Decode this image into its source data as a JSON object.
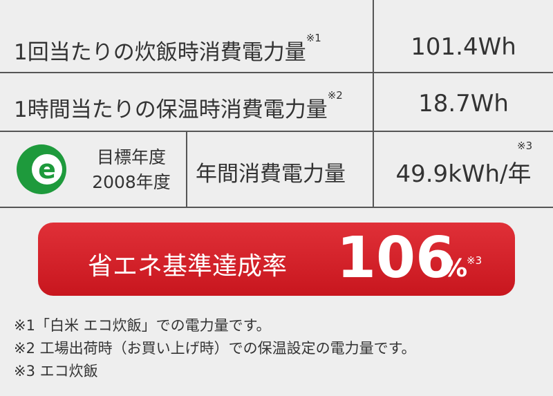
{
  "table": {
    "rows": [
      {
        "label": "1回当たりの炊飯時消費電力量",
        "note": "※1",
        "value": "101.4Wh"
      },
      {
        "label": "1時間当たりの保温時消費電力量",
        "note": "※2",
        "value": "18.7Wh"
      },
      {
        "mark": "e",
        "target": [
          "目標年度",
          "2008年度"
        ],
        "label": "年間消費電力量",
        "note": "※3",
        "value": "49.9kWh/年"
      }
    ]
  },
  "banner": {
    "label": "省エネ基準達成率",
    "value": "106",
    "unit": "%",
    "note": "※3"
  },
  "footnotes": [
    "※1「白米 エコ炊飯」での電力量です。",
    "※2 工場出荷時（お買い上げ時）での保温設定の電力量です。",
    "※3 エコ炊飯"
  ]
}
